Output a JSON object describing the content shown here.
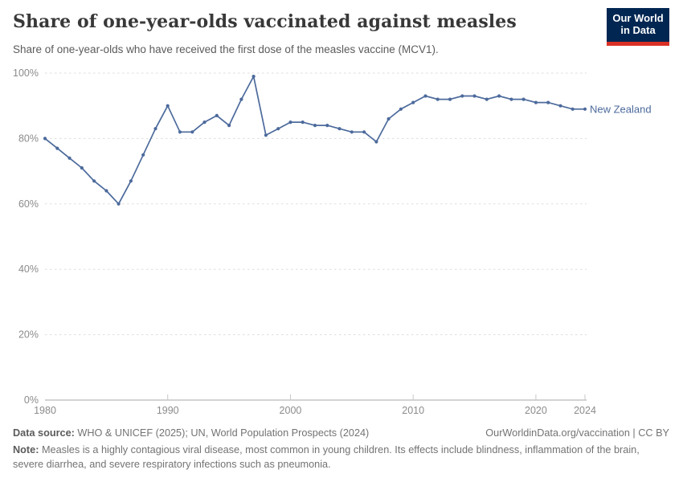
{
  "header": {
    "title": "Share of one-year-olds vaccinated against measles",
    "subtitle": "Share of one-year-olds who have received the first dose of the measles vaccine (MCV1).",
    "logo": {
      "line1": "Our World",
      "line2": "in Data"
    }
  },
  "chart_data": {
    "type": "line",
    "title": "Share of one-year-olds vaccinated against measles",
    "xlabel": "",
    "ylabel": "",
    "xlim": [
      1980,
      2024
    ],
    "ylim": [
      0,
      100
    ],
    "x_ticks": [
      1980,
      1990,
      2000,
      2010,
      2020,
      2024
    ],
    "y_ticks": [
      0,
      20,
      40,
      60,
      80,
      100
    ],
    "y_tick_suffix": "%",
    "grid": "horizontal-dashed",
    "legend_position": "end-of-line",
    "x": [
      1980,
      1981,
      1982,
      1983,
      1984,
      1985,
      1986,
      1987,
      1988,
      1989,
      1990,
      1991,
      1992,
      1993,
      1994,
      1995,
      1996,
      1997,
      1998,
      1999,
      2000,
      2001,
      2002,
      2003,
      2004,
      2005,
      2006,
      2007,
      2008,
      2009,
      2010,
      2011,
      2012,
      2013,
      2014,
      2015,
      2016,
      2017,
      2018,
      2019,
      2020,
      2021,
      2022,
      2023,
      2024
    ],
    "series": [
      {
        "name": "New Zealand",
        "color": "#4C6A9C",
        "values": [
          80,
          77,
          74,
          71,
          67,
          64,
          60,
          67,
          75,
          83,
          90,
          82,
          82,
          85,
          87,
          84,
          92,
          99,
          81,
          83,
          85,
          85,
          84,
          84,
          83,
          82,
          82,
          79,
          86,
          89,
          91,
          93,
          92,
          92,
          93,
          93,
          92,
          93,
          92,
          92,
          91,
          91,
          90,
          89,
          89
        ]
      }
    ]
  },
  "footer": {
    "source_label": "Data source:",
    "source_text": "WHO & UNICEF (2025); UN, World Population Prospects (2024)",
    "link_text": "OurWorldinData.org/vaccination | CC BY",
    "note_label": "Note:",
    "note_text": "Measles is a highly contagious viral disease, most common in young children. Its effects include blindness, inflammation of the brain, severe diarrhea, and severe respiratory infections such as pneumonia."
  },
  "colors": {
    "line": "#4C6A9C",
    "gridline": "#dddddd",
    "axis": "#a7a7a7",
    "tick": "#c8c8c8",
    "tick_label": "#8b8b8b",
    "logo_background": "#012652",
    "logo_stripe": "#d93025"
  }
}
